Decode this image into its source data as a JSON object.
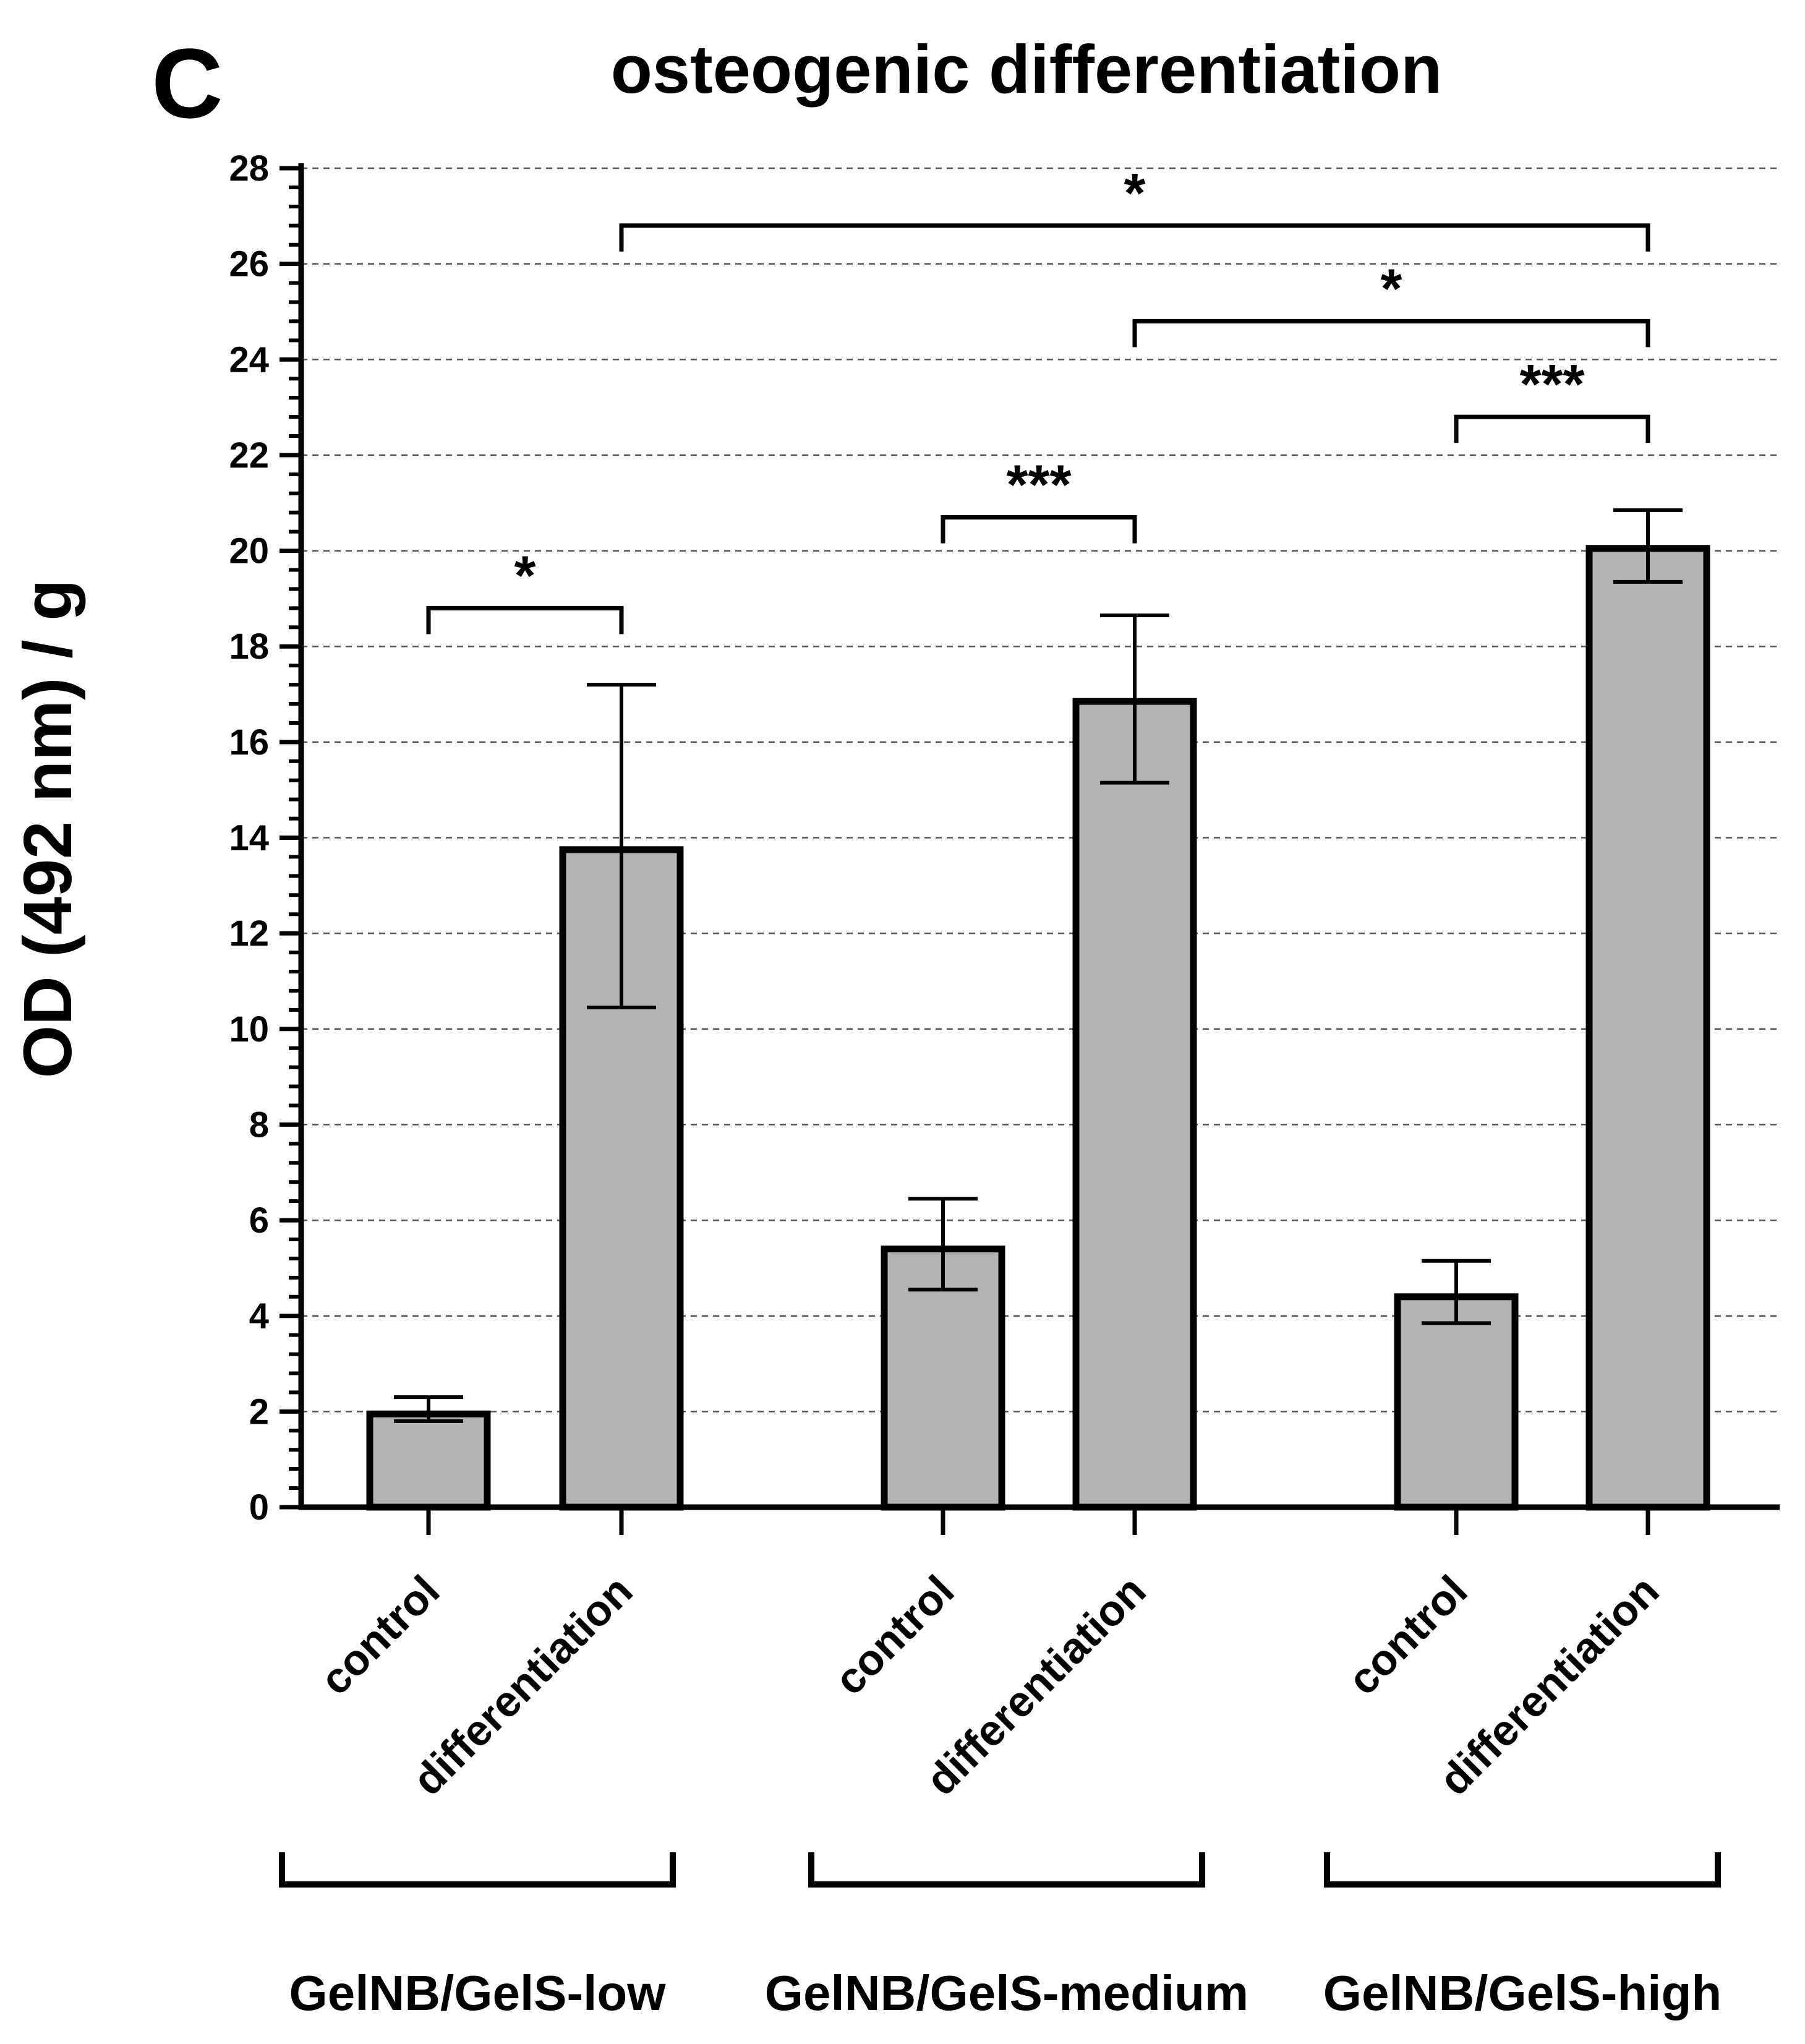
{
  "chart_data": {
    "type": "bar",
    "panel_label": "C",
    "title": "osteogenic differentiation",
    "ylabel": "OD (492 nm) / g",
    "xlabel": "",
    "ylim": [
      0,
      28
    ],
    "ytick_step": 2,
    "yticks": [
      "0",
      "2",
      "4",
      "6",
      "8",
      "10",
      "12",
      "14",
      "16",
      "18",
      "20",
      "22",
      "24",
      "26",
      "28"
    ],
    "grid": "horizontal-dashed",
    "bar_color": "#b3b3b3",
    "edge_color": "#000000",
    "categories": [
      "control",
      "differentiation",
      "control",
      "differentiation",
      "control",
      "differentiation"
    ],
    "groups": [
      {
        "name": "GelNB/GelS-low",
        "bars": [
          0,
          1
        ]
      },
      {
        "name": "GelNB/GelS-medium",
        "bars": [
          2,
          3
        ]
      },
      {
        "name": "GelNB/GelS-high",
        "bars": [
          4,
          5
        ]
      }
    ],
    "values": [
      1.95,
      13.75,
      5.4,
      16.85,
      4.4,
      20.05
    ],
    "error_upper": [
      2.3,
      17.2,
      6.45,
      18.65,
      5.15,
      20.85
    ],
    "error_lower": [
      1.8,
      10.45,
      4.55,
      15.15,
      3.85,
      19.35
    ],
    "significance": [
      {
        "from": 0,
        "to": 1,
        "label": "*",
        "y": 18.8
      },
      {
        "from": 2,
        "to": 3,
        "label": "***",
        "y": 20.7
      },
      {
        "from": 4,
        "to": 5,
        "label": "***",
        "y": 22.8
      },
      {
        "from": 3,
        "to": 5,
        "label": "*",
        "y": 24.8
      },
      {
        "from": 1,
        "to": 5,
        "label": "*",
        "y": 26.8
      }
    ]
  }
}
